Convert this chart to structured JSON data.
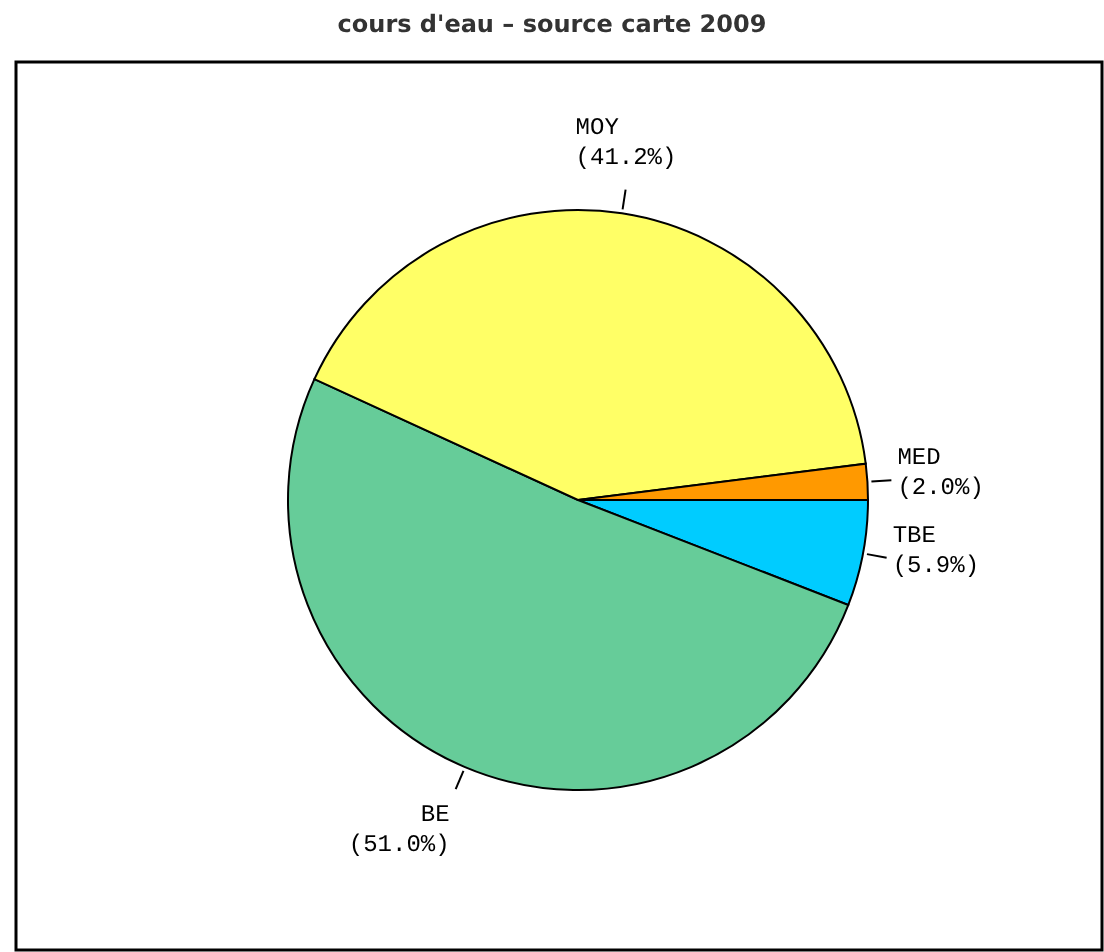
{
  "chart_data": {
    "type": "pie",
    "title": "cours d'eau – source carte 2009",
    "categories": [
      "TBE",
      "BE",
      "MOY",
      "MED"
    ],
    "values": [
      5.9,
      51.0,
      41.2,
      2.0
    ],
    "colors": [
      "#00ccff",
      "#66cc99",
      "#ffff66",
      "#ff9900"
    ],
    "value_labels": [
      "(5.9%)",
      "(51.0%)",
      "(41.2%)",
      "(2.0%)"
    ]
  }
}
